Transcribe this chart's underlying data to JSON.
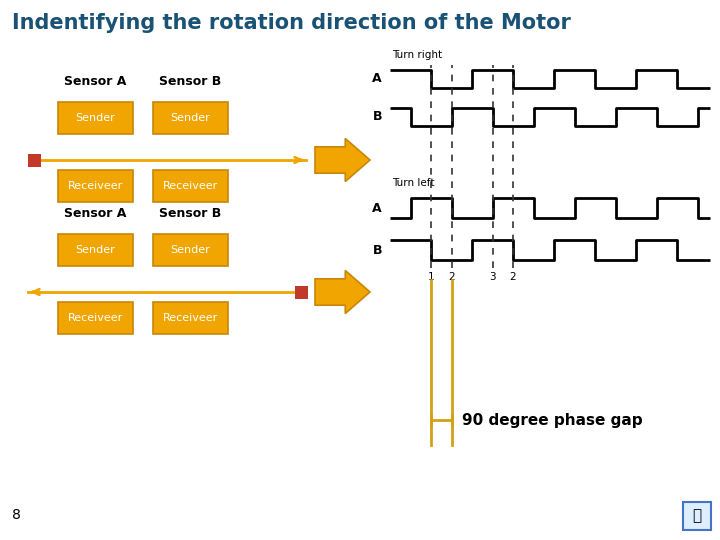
{
  "title": "Indentifying the rotation direction of the Motor",
  "title_color": "#1A5276",
  "bg_color": "#FFFFFF",
  "orange_box_color": "#F0A500",
  "orange_box_edge": "#C8860A",
  "orange_box_text_color": "#FFFFFF",
  "red_box_color": "#C0392B",
  "arrow_color": "#F0A500",
  "line_color": "#F0A500",
  "signal_line_color": "#000000",
  "yellow_line_color": "#D4A017",
  "bottom_text": "90 degree phase gap",
  "page_num": "8",
  "turn_right_label": "Turn right",
  "turn_left_label": "Turn left",
  "sensor_a_label": "Sensor A",
  "sensor_b_label": "Sensor B",
  "sender_label": "Sender",
  "receiver_label": "Receiveer",
  "signal_A_label": "A",
  "signal_B_label": "B",
  "tick_labels": [
    "1",
    "2",
    "3",
    "2"
  ]
}
